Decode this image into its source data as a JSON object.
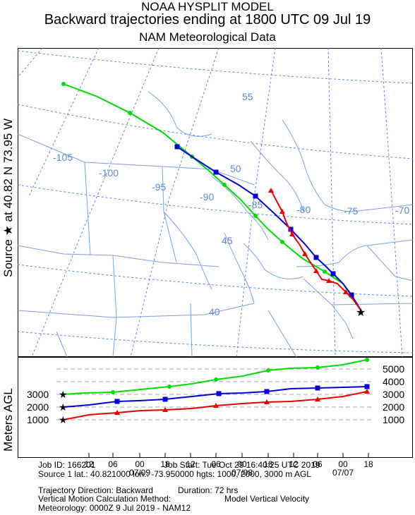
{
  "header": {
    "line1": "NOAA HYSPLIT MODEL",
    "line2": "Backward trajectories ending at 1800 UTC 09 Jul 19",
    "line3": "NAM  Meteorological Data"
  },
  "source_label": "Source ★ at  40.82 N   73.95 W",
  "height_axis": {
    "label": "Meters AGL",
    "left_ticks": [
      "3000",
      "2000",
      "1000"
    ],
    "right_ticks": [
      "5000",
      "4000",
      "3000",
      "2000",
      "1000"
    ]
  },
  "time_axis": {
    "hours": [
      "12",
      "06",
      "00",
      "18",
      "12",
      "06",
      "00",
      "18",
      "12",
      "06",
      "00",
      "18"
    ],
    "dates": [
      "07/09",
      "07/08",
      "07/07"
    ]
  },
  "map_labels": {
    "latitudes": [
      "55",
      "50",
      "45",
      "40"
    ],
    "longitudes": [
      "-105",
      "-100",
      "-95",
      "-90",
      "-85",
      "-80",
      "-75",
      "-70"
    ]
  },
  "series_colors": {
    "1000m": "#ee0000",
    "2000m": "#0000dd",
    "3000m": "#00dd00"
  },
  "footer": {
    "job_id": "Job ID: 166201",
    "job_start": "Job Start: Tue Oct 29 16:40:25 UTC 2019",
    "source_line": "Source 1 lat.: 40.821000  lon.: -73.950000  hgts: 1000, 2000, 3000 m AGL",
    "direction": "Trajectory Direction: Backward",
    "duration": "Duration: 72 hrs",
    "vertical": "Vertical Motion Calculation Method:",
    "vertical_value": "Model Vertical Velocity",
    "meteorology": "Meteorology: 0000Z  9 Jul 2019 - NAM12"
  }
}
